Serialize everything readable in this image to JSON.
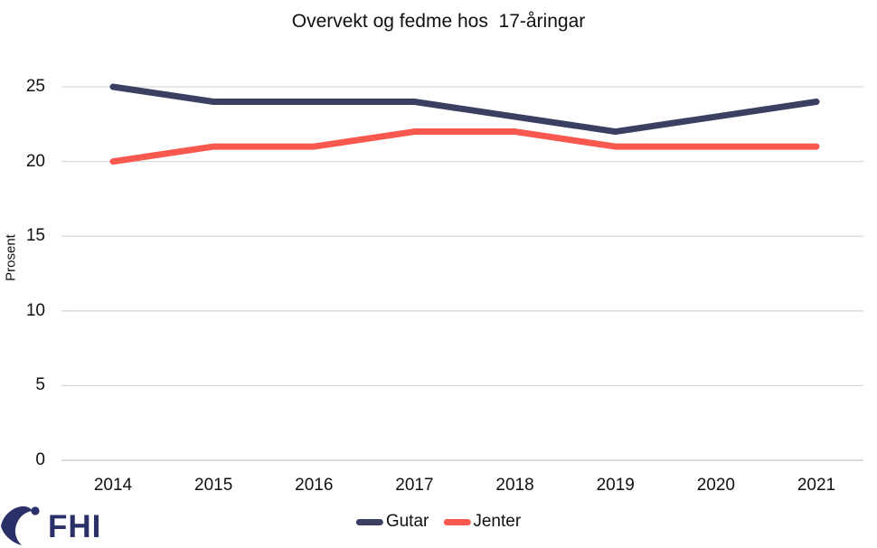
{
  "chart_data": {
    "type": "line",
    "title": "Overvekt og fedme hos  17-åringar",
    "xlabel": "",
    "ylabel": "Prosent",
    "categories": [
      "2014",
      "2015",
      "2016",
      "2017",
      "2018",
      "2019",
      "2020",
      "2021"
    ],
    "series": [
      {
        "name": "Gutar",
        "color": "#3B4063",
        "values": [
          25,
          24,
          24,
          24,
          23,
          22,
          23,
          24
        ]
      },
      {
        "name": "Jenter",
        "color": "#F9584F",
        "values": [
          20,
          21,
          21,
          22,
          22,
          21,
          21,
          21
        ]
      }
    ],
    "ylim": [
      0,
      25
    ],
    "yticks": [
      0,
      5,
      10,
      15,
      20,
      25
    ],
    "grid": true,
    "legend_position": "bottom",
    "gridline_color": "#D9D9D9",
    "baseline_color": "#C6C6C6",
    "line_width": 7
  },
  "logo": {
    "text": "FHI",
    "color": "#2A3169"
  }
}
